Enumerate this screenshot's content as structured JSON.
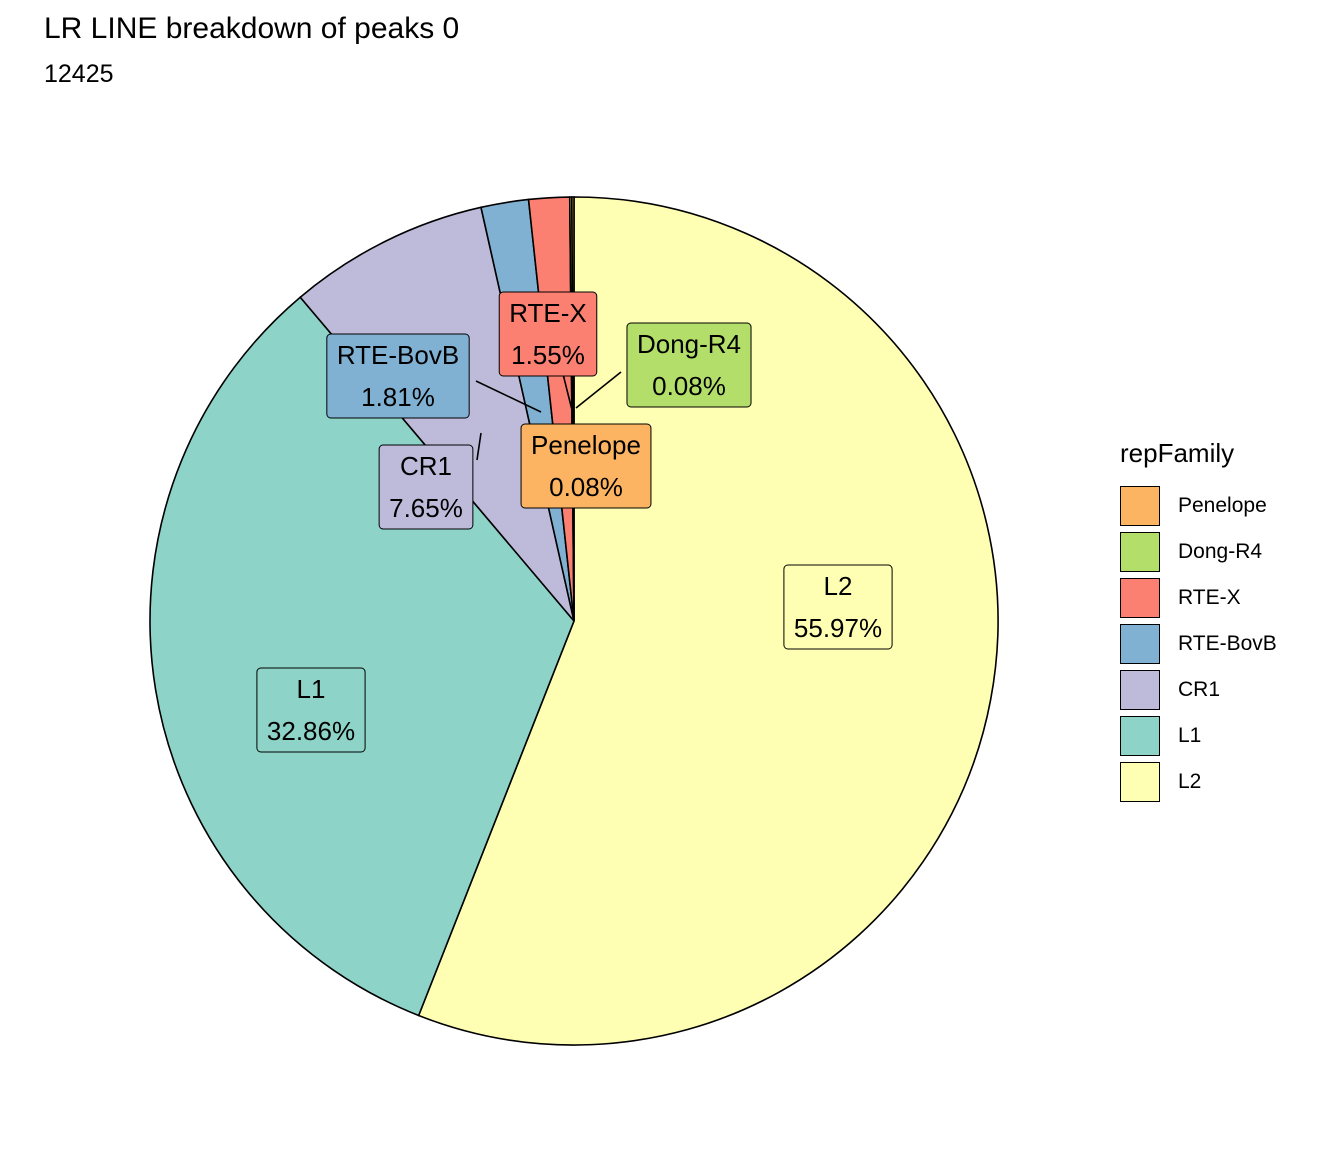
{
  "chart_data": {
    "type": "pie",
    "title": "LR LINE breakdown of peaks 0",
    "subtitle": "12425",
    "legend_title": "repFamily",
    "legend_position": "right",
    "slices": [
      {
        "label": "L2",
        "value": 55.97,
        "pct_label": "55.97%",
        "color": "#FFFFB3"
      },
      {
        "label": "L1",
        "value": 32.86,
        "pct_label": "32.86%",
        "color": "#8DD3C7"
      },
      {
        "label": "CR1",
        "value": 7.65,
        "pct_label": "7.65%",
        "color": "#BEBADA"
      },
      {
        "label": "RTE-BovB",
        "value": 1.81,
        "pct_label": "1.81%",
        "color": "#80B1D3"
      },
      {
        "label": "RTE-X",
        "value": 1.55,
        "pct_label": "1.55%",
        "color": "#FB8072"
      },
      {
        "label": "Dong-R4",
        "value": 0.08,
        "pct_label": "0.08%",
        "color": "#B3DE69"
      },
      {
        "label": "Penelope",
        "value": 0.08,
        "pct_label": "0.08%",
        "color": "#FDB462"
      }
    ],
    "legend_order": [
      "Penelope",
      "Dong-R4",
      "RTE-X",
      "RTE-BovB",
      "CR1",
      "L1",
      "L2"
    ]
  }
}
